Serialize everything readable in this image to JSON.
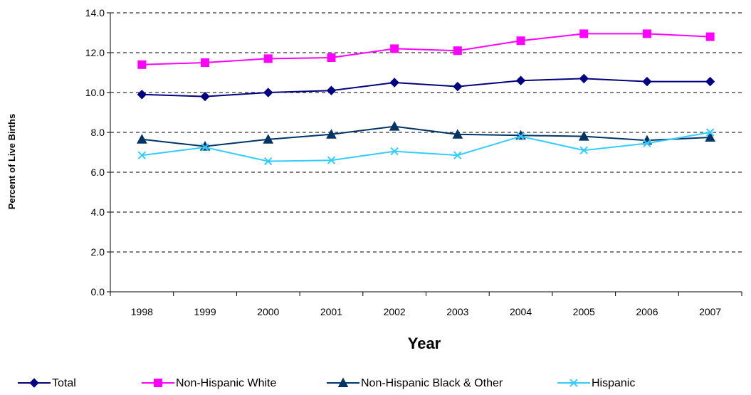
{
  "chart_data": {
    "type": "line",
    "xlabel": "Year",
    "ylabel": "Percent of Live Births",
    "ylim": [
      0,
      14
    ],
    "yticks": [
      "0.0",
      "2.0",
      "4.0",
      "6.0",
      "8.0",
      "10.0",
      "12.0",
      "14.0"
    ],
    "categories": [
      "1998",
      "1999",
      "2000",
      "2001",
      "2002",
      "2003",
      "2004",
      "2005",
      "2006",
      "2007"
    ],
    "grid": "horizontal dashed",
    "legend_position": "bottom",
    "series": [
      {
        "name": "Total",
        "color": "#000080",
        "marker": "diamond",
        "values": [
          9.9,
          9.8,
          10.0,
          10.1,
          10.5,
          10.3,
          10.6,
          10.7,
          10.55,
          10.55
        ]
      },
      {
        "name": "Non-Hispanic White",
        "color": "#ff00ff",
        "marker": "square",
        "values": [
          11.4,
          11.5,
          11.7,
          11.75,
          12.2,
          12.1,
          12.6,
          12.95,
          12.95,
          12.8
        ]
      },
      {
        "name": "Non-Hispanic Black & Other",
        "color": "#003366",
        "marker": "triangle",
        "values": [
          7.65,
          7.3,
          7.65,
          7.9,
          8.3,
          7.9,
          7.85,
          7.8,
          7.6,
          7.75
        ]
      },
      {
        "name": "Hispanic",
        "color": "#33ccff",
        "marker": "x",
        "values": [
          6.85,
          7.25,
          6.55,
          6.6,
          7.05,
          6.85,
          7.8,
          7.1,
          7.45,
          8.0
        ]
      }
    ]
  }
}
